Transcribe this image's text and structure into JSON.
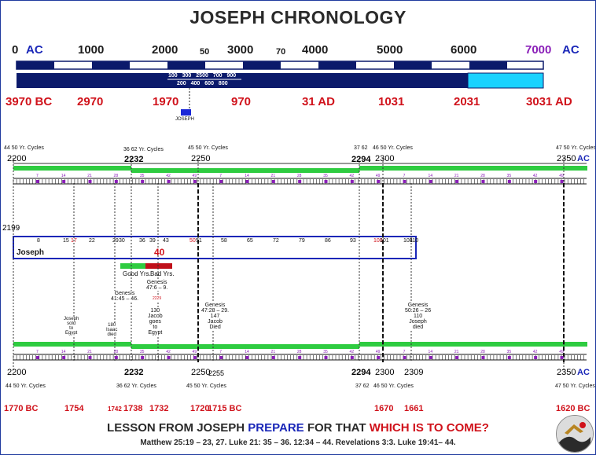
{
  "title": "JOSEPH  CHRONOLOGY",
  "top_scale": {
    "labels": [
      "0",
      "1000",
      "2000",
      "3000",
      "4000",
      "5000",
      "6000"
    ],
    "ac_left": "AC",
    "right_value": "7000",
    "ac_right": "AC",
    "sub_labels": [
      "50",
      "70"
    ],
    "inner_labels_top": [
      "100",
      "300",
      "2500",
      "700",
      "900"
    ],
    "inner_labels_bottom": [
      "200",
      "400",
      "600",
      "800"
    ],
    "dates": [
      "3970 BC",
      "2970",
      "1970",
      "970",
      "31 AD",
      "1031",
      "2031",
      "3031 AD"
    ],
    "marker_label": "JOSEPH"
  },
  "upper_timeline": {
    "cycle_labels": [
      "44 50 Yr. Cycles",
      "36 62 Yr. Cycles",
      "45 50 Yr. Cycles",
      "37 62",
      "46 50 Yr. Cycles",
      "47 50 Yr. Cycles"
    ],
    "years": [
      "2200",
      "2232",
      "2250",
      "2294",
      "2300",
      "2350"
    ],
    "ac": "AC",
    "tick_numbers": [
      "7",
      "14",
      "21",
      "28",
      "35",
      "42",
      "49",
      "7",
      "14",
      "21",
      "28",
      "35",
      "42",
      "49",
      "7",
      "14",
      "21",
      "28",
      "35",
      "42",
      "49"
    ],
    "year_start": "2199"
  },
  "joseph_box": {
    "label": "Joseph",
    "ages": [
      "8",
      "15",
      "17",
      "22",
      "29",
      "30",
      "36",
      "39",
      "43",
      "50",
      "51",
      "58",
      "65",
      "72",
      "79",
      "86",
      "93",
      "100",
      "101",
      "108",
      "110"
    ],
    "forty": "40",
    "good_years": "Good Yrs.",
    "bad_years": "Bad Yrs."
  },
  "events": {
    "genesis_41": "Genesis\n41:45 – 46.",
    "genesis_47a": "Genesis\n47:6 – 9.",
    "jacob_130": "130\nJacob\ngoes\nto\nEgypt",
    "small_num": "2229",
    "genesis_47b": "Genesis\n47:28 – 29.\n147\nJacob\nDied",
    "genesis_50": "Genesis\n50:26 – 26\n110\nJoseph\ndied",
    "joseph_sold": "Joseph\nsold\nto\nEgypt",
    "isaac_died": "180\nIsaac\ndied"
  },
  "lower_timeline": {
    "years": [
      "2200",
      "2232",
      "2250",
      "2255",
      "2294",
      "2300",
      "2309",
      "2350"
    ],
    "cycle_labels": [
      "44 50 Yr. Cycles",
      "36 62 Yr. Cycles",
      "45 50 Yr. Cycles",
      "37 62",
      "46 50 Yr. Cycles",
      "47 50 Yr. Cycles"
    ],
    "ac": "AC",
    "dates": [
      "1770 BC",
      "1754",
      "1742",
      "1738",
      "1732",
      "1720",
      "1715 BC",
      "1670",
      "1661",
      "1620 BC"
    ]
  },
  "lesson": {
    "part1": "LESSON FROM JOSEPH ",
    "part2": "PREPARE",
    "part3": " FOR THAT ",
    "part4": "WHICH IS TO COME?",
    "refs": "Matthew 25:19 – 23, 27.   Luke 21: 35 – 36. 12:34 – 44.   Revelations 3:3.   Luke 19:41– 44."
  },
  "colors": {
    "navy": "#0b1a6b",
    "cyan": "#1ad2ff",
    "green": "#2ecc40",
    "red": "#d0121b",
    "purple": "#8a1fb8",
    "blue": "#1a27b8"
  }
}
